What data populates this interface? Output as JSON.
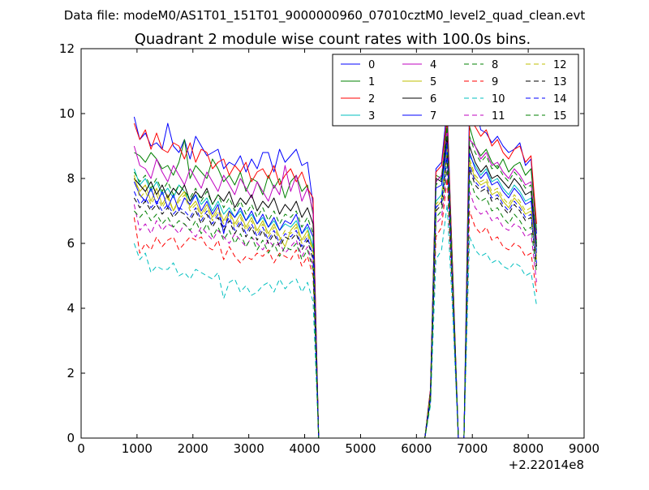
{
  "chart_data": {
    "type": "line",
    "suptitle": "Data file: modeM0/AS1T01_151T01_9000000960_07010cztM0_level2_quad_clean.evt",
    "title": "Quadrant 2 module wise count rates with 100.0s bins.",
    "xlabel": "",
    "ylabel": "",
    "x_offset_label": "+2.22014e8",
    "xlim": [
      0,
      9000
    ],
    "ylim": [
      0,
      12
    ],
    "xticks": [
      0,
      1000,
      2000,
      3000,
      4000,
      5000,
      6000,
      7000,
      8000,
      9000
    ],
    "yticks": [
      0,
      2,
      4,
      6,
      8,
      10,
      12
    ],
    "grid": false,
    "legend_position": "top-right",
    "x": [
      950,
      1050,
      1150,
      1250,
      1350,
      1450,
      1550,
      1650,
      1750,
      1850,
      1950,
      2050,
      2150,
      2250,
      2350,
      2450,
      2550,
      2650,
      2750,
      2850,
      2950,
      3050,
      3150,
      3250,
      3350,
      3450,
      3550,
      3650,
      3750,
      3850,
      3950,
      4050,
      4150,
      4250,
      4350,
      6150,
      6250,
      6350,
      6450,
      6550,
      6650,
      6750,
      6850,
      6950,
      7050,
      7150,
      7250,
      7350,
      7450,
      7550,
      7650,
      7750,
      7850,
      7950,
      8050,
      8150
    ],
    "series": [
      {
        "name": "0",
        "color": "#0000ff",
        "dash": "solid",
        "values": [
          9.9,
          9.2,
          9.4,
          9.0,
          9.1,
          8.9,
          9.7,
          9.0,
          8.8,
          9.2,
          8.6,
          9.3,
          9.0,
          8.7,
          8.8,
          8.9,
          8.3,
          8.5,
          8.4,
          8.7,
          8.2,
          8.6,
          8.3,
          8.8,
          8.8,
          8.2,
          8.9,
          8.5,
          8.7,
          8.9,
          8.4,
          8.5,
          7.2,
          0,
          0,
          0,
          1.5,
          8.3,
          8.5,
          10.2,
          5.0,
          0,
          0,
          10.4,
          10.3,
          9.5,
          9.4,
          9.1,
          9.3,
          9.0,
          8.8,
          8.9,
          9.1,
          8.4,
          8.6,
          6.3
        ]
      },
      {
        "name": "1",
        "color": "#008000",
        "dash": "solid",
        "values": [
          8.8,
          8.7,
          8.5,
          8.8,
          8.6,
          8.3,
          8.4,
          8.1,
          8.5,
          9.2,
          8.0,
          8.4,
          8.2,
          8.0,
          8.6,
          8.3,
          7.9,
          8.1,
          7.8,
          8.2,
          7.6,
          8.0,
          7.9,
          7.5,
          8.1,
          7.7,
          8.0,
          7.4,
          7.9,
          8.1,
          7.6,
          7.8,
          6.9,
          0,
          0,
          0,
          1.4,
          8.1,
          8.0,
          9.8,
          5.1,
          0,
          0,
          9.6,
          9.0,
          8.7,
          8.9,
          8.5,
          8.3,
          8.6,
          8.2,
          8.4,
          8.5,
          8.1,
          8.3,
          6.4
        ]
      },
      {
        "name": "2",
        "color": "#ff0000",
        "dash": "solid",
        "values": [
          9.7,
          9.2,
          9.5,
          8.9,
          9.4,
          8.9,
          8.8,
          9.1,
          9.0,
          8.6,
          9.1,
          8.5,
          8.9,
          8.8,
          8.3,
          8.5,
          8.6,
          8.1,
          8.4,
          8.2,
          8.5,
          7.9,
          8.2,
          8.3,
          8.0,
          8.4,
          7.8,
          8.1,
          8.3,
          7.9,
          8.2,
          7.7,
          7.4,
          0,
          0,
          0,
          1.5,
          8.2,
          8.4,
          9.9,
          5.1,
          0,
          0,
          9.8,
          9.6,
          9.3,
          9.5,
          9.0,
          9.2,
          8.8,
          8.6,
          8.9,
          9.0,
          8.5,
          8.7,
          6.6
        ]
      },
      {
        "name": "3",
        "color": "#00bfbf",
        "dash": "solid",
        "values": [
          8.3,
          7.8,
          8.0,
          7.6,
          7.9,
          7.5,
          7.7,
          7.4,
          7.8,
          7.6,
          7.3,
          7.5,
          7.2,
          7.4,
          7.0,
          7.3,
          6.9,
          7.1,
          6.8,
          7.0,
          6.7,
          6.9,
          6.6,
          6.8,
          6.5,
          6.7,
          6.4,
          6.6,
          6.5,
          6.7,
          6.3,
          6.5,
          5.9,
          0,
          0,
          0,
          1.3,
          7.3,
          7.5,
          9.0,
          4.7,
          0,
          0,
          8.7,
          8.4,
          8.1,
          8.3,
          7.9,
          8.0,
          7.7,
          7.5,
          7.8,
          7.6,
          7.3,
          7.4,
          5.8
        ]
      },
      {
        "name": "4",
        "color": "#bf00bf",
        "dash": "solid",
        "values": [
          9.0,
          8.4,
          8.3,
          8.0,
          8.6,
          8.2,
          7.9,
          8.4,
          8.1,
          7.8,
          8.3,
          8.0,
          7.7,
          8.2,
          7.9,
          7.6,
          8.1,
          7.8,
          7.5,
          8.0,
          7.7,
          7.4,
          7.9,
          7.6,
          7.3,
          7.8,
          7.5,
          8.4,
          7.6,
          8.1,
          7.3,
          7.7,
          7.0,
          0,
          0,
          0,
          1.4,
          7.9,
          8.1,
          9.5,
          4.9,
          0,
          0,
          9.2,
          9.0,
          8.6,
          8.8,
          8.4,
          8.5,
          8.2,
          8.0,
          8.3,
          8.1,
          7.8,
          7.9,
          6.1
        ]
      },
      {
        "name": "5",
        "color": "#bfbf00",
        "dash": "solid",
        "values": [
          8.0,
          7.6,
          7.8,
          7.3,
          7.7,
          7.2,
          7.5,
          7.0,
          7.4,
          7.6,
          7.1,
          7.3,
          6.9,
          7.2,
          6.8,
          7.1,
          6.7,
          7.0,
          6.6,
          6.9,
          6.5,
          6.8,
          6.4,
          6.7,
          6.3,
          6.6,
          6.2,
          5.9,
          6.4,
          6.6,
          6.1,
          6.4,
          5.8,
          0,
          0,
          0,
          1.3,
          7.1,
          7.3,
          8.8,
          4.6,
          0,
          0,
          8.5,
          8.0,
          7.8,
          7.9,
          7.5,
          7.6,
          7.3,
          7.1,
          7.4,
          7.2,
          6.9,
          7.0,
          5.5
        ]
      },
      {
        "name": "6",
        "color": "#000000",
        "dash": "solid",
        "values": [
          8.0,
          7.8,
          7.6,
          7.9,
          7.5,
          7.8,
          7.4,
          7.7,
          7.5,
          7.8,
          7.3,
          7.6,
          7.4,
          7.7,
          7.2,
          7.5,
          7.3,
          7.6,
          7.1,
          7.4,
          7.2,
          7.5,
          7.0,
          7.3,
          7.1,
          7.4,
          6.9,
          7.2,
          7.0,
          7.3,
          6.8,
          7.1,
          6.6,
          0,
          0,
          0,
          1.4,
          8.0,
          7.9,
          9.3,
          4.8,
          0,
          0,
          9.0,
          8.5,
          8.2,
          8.4,
          8.0,
          8.1,
          7.9,
          7.7,
          8.0,
          7.8,
          7.5,
          7.6,
          5.9
        ]
      },
      {
        "name": "7",
        "color": "#0000ff",
        "dash": "solid",
        "values": [
          7.9,
          7.5,
          7.3,
          7.7,
          7.2,
          7.6,
          7.1,
          7.5,
          7.0,
          7.4,
          7.2,
          7.5,
          7.0,
          7.3,
          6.9,
          7.2,
          6.3,
          7.0,
          6.8,
          7.1,
          6.7,
          7.0,
          6.6,
          6.9,
          6.5,
          6.8,
          6.4,
          6.7,
          6.6,
          6.9,
          6.3,
          6.6,
          6.2,
          0,
          0,
          0,
          1.3,
          7.7,
          7.8,
          9.1,
          4.7,
          0,
          0,
          8.8,
          8.3,
          8.0,
          8.2,
          7.8,
          7.9,
          7.6,
          7.4,
          7.7,
          7.5,
          7.2,
          7.3,
          5.7
        ]
      },
      {
        "name": "8",
        "color": "#008000",
        "dash": "dashed",
        "values": [
          8.2,
          7.9,
          8.1,
          7.7,
          8.0,
          7.6,
          7.9,
          7.5,
          7.8,
          7.6,
          7.4,
          7.7,
          7.3,
          7.6,
          7.2,
          7.5,
          7.1,
          7.4,
          7.0,
          7.3,
          6.9,
          7.2,
          6.8,
          7.1,
          6.7,
          7.0,
          6.6,
          6.9,
          6.8,
          7.0,
          6.5,
          6.8,
          6.3,
          0,
          0,
          0,
          1.4,
          7.8,
          8.0,
          9.6,
          4.9,
          0,
          0,
          9.3,
          8.8,
          8.5,
          8.7,
          8.3,
          8.4,
          8.1,
          7.9,
          8.2,
          8.0,
          7.7,
          7.8,
          6.0
        ]
      },
      {
        "name": "9",
        "color": "#ff0000",
        "dash": "dashed",
        "values": [
          6.8,
          5.7,
          6.0,
          5.8,
          6.2,
          5.9,
          6.1,
          6.2,
          5.8,
          6.0,
          6.2,
          6.1,
          6.2,
          5.9,
          5.8,
          6.1,
          5.5,
          5.9,
          5.6,
          5.4,
          5.6,
          5.5,
          5.7,
          5.6,
          5.8,
          5.4,
          5.7,
          5.6,
          5.5,
          5.8,
          5.3,
          5.6,
          5.0,
          0,
          0,
          0,
          1.1,
          6.2,
          6.5,
          8.0,
          4.1,
          0,
          0,
          7.0,
          6.5,
          6.3,
          6.5,
          6.1,
          6.2,
          5.9,
          5.8,
          6.0,
          5.9,
          5.6,
          5.7,
          4.5
        ]
      },
      {
        "name": "10",
        "color": "#00bfbf",
        "dash": "dashed",
        "values": [
          6.0,
          5.5,
          5.7,
          5.1,
          5.3,
          5.2,
          5.2,
          5.4,
          5.0,
          5.1,
          4.9,
          5.2,
          5.1,
          5.0,
          4.9,
          5.1,
          4.3,
          4.8,
          4.9,
          4.5,
          4.7,
          4.4,
          4.5,
          4.7,
          4.8,
          4.5,
          4.9,
          4.6,
          4.8,
          4.9,
          4.5,
          4.8,
          4.2,
          0,
          0,
          0,
          1.0,
          5.5,
          5.8,
          7.2,
          3.8,
          0,
          0,
          6.2,
          5.8,
          5.6,
          5.7,
          5.4,
          5.5,
          5.3,
          5.2,
          5.4,
          5.3,
          5.0,
          5.1,
          4.1
        ]
      },
      {
        "name": "11",
        "color": "#bf00bf",
        "dash": "dashed",
        "values": [
          7.2,
          6.4,
          6.6,
          6.3,
          6.7,
          6.4,
          6.6,
          6.5,
          6.3,
          6.6,
          6.4,
          6.2,
          6.5,
          6.3,
          6.1,
          6.4,
          6.2,
          6.0,
          6.3,
          6.1,
          5.9,
          6.2,
          6.0,
          5.8,
          6.1,
          5.9,
          6.0,
          5.7,
          5.9,
          6.1,
          5.6,
          5.9,
          5.3,
          0,
          0,
          0,
          1.2,
          6.6,
          6.8,
          8.3,
          4.3,
          0,
          0,
          7.6,
          7.1,
          6.9,
          7.0,
          6.7,
          6.8,
          6.5,
          6.4,
          6.6,
          6.5,
          6.2,
          6.3,
          4.8
        ]
      },
      {
        "name": "12",
        "color": "#bfbf00",
        "dash": "dashed",
        "values": [
          8.1,
          7.4,
          7.6,
          7.2,
          7.5,
          7.1,
          7.4,
          7.0,
          7.3,
          7.5,
          7.0,
          7.2,
          6.8,
          7.1,
          6.7,
          7.0,
          6.6,
          6.9,
          6.5,
          6.8,
          6.4,
          6.7,
          6.3,
          6.6,
          6.2,
          6.5,
          6.1,
          6.4,
          6.3,
          6.5,
          6.0,
          6.3,
          5.7,
          0,
          0,
          0,
          1.3,
          7.2,
          7.4,
          8.9,
          4.6,
          0,
          0,
          8.6,
          8.1,
          7.9,
          8.0,
          7.6,
          7.7,
          7.4,
          7.2,
          7.5,
          7.3,
          7.0,
          7.1,
          5.6
        ]
      },
      {
        "name": "13",
        "color": "#000000",
        "dash": "dashed",
        "values": [
          7.4,
          7.1,
          7.3,
          7.0,
          7.2,
          6.9,
          7.1,
          6.8,
          7.0,
          6.9,
          6.7,
          7.0,
          6.6,
          6.9,
          6.5,
          6.8,
          6.4,
          6.7,
          6.3,
          6.6,
          6.2,
          6.5,
          6.1,
          6.4,
          6.0,
          6.3,
          5.9,
          6.2,
          6.1,
          6.3,
          5.8,
          6.1,
          5.5,
          0,
          0,
          0,
          1.2,
          7.0,
          7.2,
          8.7,
          4.5,
          0,
          0,
          8.3,
          7.8,
          7.6,
          7.7,
          7.3,
          7.4,
          7.1,
          6.9,
          7.2,
          7.0,
          6.7,
          6.8,
          5.3
        ]
      },
      {
        "name": "14",
        "color": "#0000ff",
        "dash": "dashed",
        "values": [
          7.6,
          7.2,
          7.4,
          7.1,
          7.3,
          7.0,
          7.2,
          6.9,
          7.1,
          7.0,
          6.8,
          7.1,
          6.7,
          7.0,
          6.6,
          6.9,
          6.5,
          6.8,
          6.4,
          6.7,
          6.3,
          6.6,
          6.2,
          6.5,
          6.1,
          6.4,
          6.0,
          6.3,
          6.2,
          6.4,
          5.9,
          6.2,
          5.6,
          0,
          0,
          0,
          1.2,
          7.1,
          7.3,
          8.8,
          4.5,
          0,
          0,
          8.4,
          7.9,
          7.7,
          7.8,
          7.4,
          7.5,
          7.2,
          7.0,
          7.3,
          7.1,
          6.8,
          6.9,
          5.4
        ]
      },
      {
        "name": "15",
        "color": "#008000",
        "dash": "dashed",
        "values": [
          7.0,
          6.8,
          7.0,
          6.7,
          6.9,
          6.6,
          6.8,
          6.5,
          6.7,
          6.6,
          6.4,
          6.7,
          6.3,
          6.6,
          6.2,
          6.5,
          6.1,
          6.4,
          6.0,
          6.3,
          5.9,
          6.2,
          5.8,
          6.1,
          5.7,
          6.0,
          5.6,
          5.9,
          5.8,
          6.0,
          5.5,
          5.8,
          5.2,
          0,
          0,
          0,
          1.1,
          6.8,
          7.0,
          8.4,
          4.4,
          0,
          0,
          8.0,
          7.5,
          7.3,
          7.4,
          7.0,
          7.1,
          6.8,
          6.6,
          6.9,
          6.7,
          6.4,
          6.5,
          5.1
        ]
      }
    ]
  }
}
